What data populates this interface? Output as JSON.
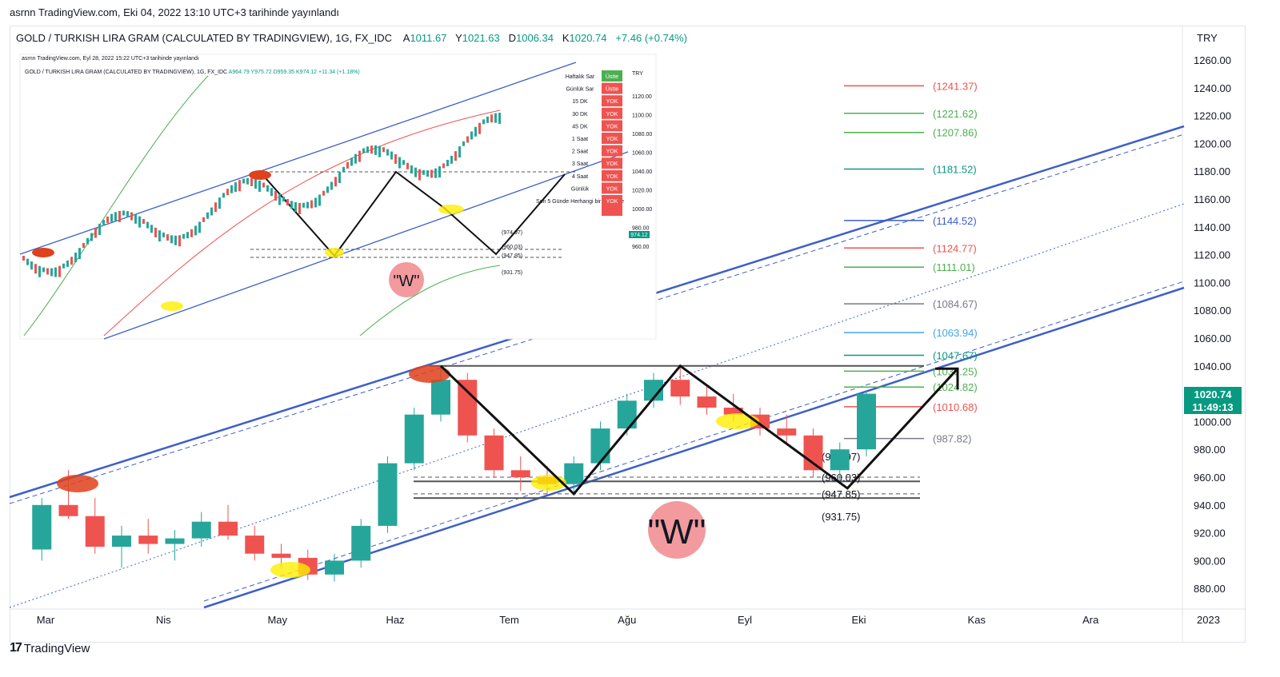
{
  "header": {
    "published_by": "asrnn TradingView.com, Eki 04, 2022 13:10 UTC+3 tarihinde yayınlandı",
    "symbol": "GOLD / TURKISH LIRA GRAM (CALCULATED BY TRADINGVIEW), 1G, FX_IDC",
    "open_label": "A",
    "open": "1011.67",
    "high_label": "Y",
    "high": "1021.63",
    "low_label": "D",
    "low": "1006.34",
    "close_label": "K",
    "close": "1020.74",
    "change": "+7.46 (+0.74%)",
    "currency": "TRY"
  },
  "footer": {
    "brand": "TradingView",
    "logo_glyph": "17"
  },
  "colors": {
    "bull": "#26a69a",
    "bear": "#ef5350",
    "channel": "#3d5fc7",
    "pattern": "#111111",
    "highlight_red": "#e0401b",
    "highlight_yellow": "#ffee00",
    "w_circle": "#f29a9e"
  },
  "chart_data": {
    "type": "candlestick",
    "title": "GOLD / TURKISH LIRA GRAM (CALCULATED BY TRADINGVIEW), 1G, FX_IDC",
    "y_axis": {
      "ticks": [
        "1260.00",
        "1240.00",
        "1220.00",
        "1200.00",
        "1180.00",
        "1160.00",
        "1140.00",
        "1120.00",
        "1100.00",
        "1080.00",
        "1060.00",
        "1040.00",
        "1020.00",
        "1000.00",
        "980.00",
        "960.00",
        "940.00",
        "920.00",
        "900.00",
        "880.00"
      ],
      "range": [
        868,
        1268
      ]
    },
    "x_axis": {
      "ticks": [
        "Mar",
        "Nis",
        "May",
        "Haz",
        "Tem",
        "Ağu",
        "Eyl",
        "Eki",
        "Kas",
        "Ara",
        "2023"
      ]
    },
    "last_price": {
      "value": "1020.74",
      "countdown": "11:49:13"
    },
    "price_levels": [
      {
        "label": "(1241.37)",
        "value": 1241.37,
        "color": "#ef5350"
      },
      {
        "label": "(1221.62)",
        "value": 1221.62,
        "color": "#4caf50"
      },
      {
        "label": "(1207.86)",
        "value": 1207.86,
        "color": "#4caf50"
      },
      {
        "label": "(1181.52)",
        "value": 1181.52,
        "color": "#089981"
      },
      {
        "label": "(1144.52)",
        "value": 1144.52,
        "color": "#3d5fc7"
      },
      {
        "label": "(1124.77)",
        "value": 1124.77,
        "color": "#ef5350"
      },
      {
        "label": "(1111.01)",
        "value": 1111.01,
        "color": "#4caf50"
      },
      {
        "label": "(1084.67)",
        "value": 1084.67,
        "color": "#787b86"
      },
      {
        "label": "(1063.94)",
        "value": 1063.94,
        "color": "#42a5f5"
      },
      {
        "label": "(1047.67)",
        "value": 1047.67,
        "color": "#089981"
      },
      {
        "label": "(1036.25)",
        "value": 1036.25,
        "color": "#4caf50"
      },
      {
        "label": "(1024.82)",
        "value": 1024.82,
        "color": "#4caf50"
      },
      {
        "label": "(1010.68)",
        "value": 1010.68,
        "color": "#ef5350"
      },
      {
        "label": "(987.82)",
        "value": 987.82,
        "color": "#787b86"
      },
      {
        "label": "(974.97)",
        "value": 974.97,
        "color": "#131722"
      },
      {
        "label": "(960.03)",
        "value": 960.03,
        "color": "#131722"
      },
      {
        "label": "(947.85)",
        "value": 947.85,
        "color": "#131722"
      },
      {
        "label": "(931.75)",
        "value": 931.75,
        "color": "#131722"
      }
    ],
    "w_pattern_points": [
      {
        "date": "2022-06-13",
        "value": 1040
      },
      {
        "date": "2022-07-18",
        "value": 948
      },
      {
        "date": "2022-08-15",
        "value": 1040
      },
      {
        "date": "2022-09-28",
        "value": 952
      },
      {
        "date": "2022-10-27",
        "value": 1038
      }
    ],
    "annotation": "\"W\"",
    "series": [
      {
        "values": []
      }
    ],
    "candles_approx": [
      [
        "2022-02-28",
        908,
        945,
        900,
        940
      ],
      [
        "2022-03-07",
        940,
        965,
        930,
        932
      ],
      [
        "2022-03-14",
        932,
        945,
        905,
        910
      ],
      [
        "2022-03-21",
        910,
        925,
        895,
        918
      ],
      [
        "2022-03-28",
        918,
        930,
        905,
        912
      ],
      [
        "2022-04-04",
        912,
        922,
        900,
        916
      ],
      [
        "2022-04-11",
        916,
        935,
        910,
        928
      ],
      [
        "2022-04-18",
        928,
        940,
        915,
        918
      ],
      [
        "2022-04-25",
        918,
        925,
        900,
        905
      ],
      [
        "2022-05-02",
        905,
        912,
        895,
        902
      ],
      [
        "2022-05-09",
        902,
        908,
        886,
        890
      ],
      [
        "2022-05-16",
        890,
        905,
        885,
        900
      ],
      [
        "2022-05-23",
        900,
        930,
        895,
        925
      ],
      [
        "2022-05-30",
        925,
        975,
        920,
        970
      ],
      [
        "2022-06-06",
        970,
        1010,
        965,
        1005
      ],
      [
        "2022-06-13",
        1005,
        1040,
        1000,
        1030
      ],
      [
        "2022-06-20",
        1030,
        1035,
        985,
        990
      ],
      [
        "2022-06-27",
        990,
        995,
        960,
        965
      ],
      [
        "2022-07-04",
        965,
        975,
        950,
        960
      ],
      [
        "2022-07-11",
        960,
        968,
        948,
        955
      ],
      [
        "2022-07-18",
        955,
        975,
        948,
        970
      ],
      [
        "2022-07-25",
        970,
        1000,
        965,
        995
      ],
      [
        "2022-08-01",
        995,
        1020,
        990,
        1015
      ],
      [
        "2022-08-08",
        1015,
        1035,
        1010,
        1030
      ],
      [
        "2022-08-15",
        1030,
        1040,
        1012,
        1018
      ],
      [
        "2022-08-22",
        1018,
        1025,
        1005,
        1010
      ],
      [
        "2022-08-29",
        1010,
        1020,
        1000,
        1005
      ],
      [
        "2022-09-05",
        1005,
        1010,
        990,
        995
      ],
      [
        "2022-09-12",
        995,
        1005,
        985,
        990
      ],
      [
        "2022-09-19",
        990,
        995,
        960,
        965
      ],
      [
        "2022-09-26",
        965,
        985,
        955,
        980
      ],
      [
        "2022-10-03",
        980,
        1022,
        975,
        1020
      ]
    ]
  },
  "inset": {
    "publish": "asrnn TradingView.com, Eyl 28, 2022 15:22 UTC+3 tarihinde yayınlandı",
    "symbol": "GOLD / TURKISH LIRA GRAM (CALCULATED BY TRADINGVIEW), 1G, FX_IDC",
    "ohlc": "A964.79 Y975.72 D959.35 K974.12",
    "change": "+11.34 (+1.18%)",
    "currency": "TRY",
    "y_ticks": [
      "1120.00",
      "1100.00",
      "1080.00",
      "1060.00",
      "1040.00",
      "1020.00",
      "1000.00",
      "980.00",
      "960.00"
    ],
    "last_price": "974.12",
    "levels": [
      "(974.97)",
      "(960.03)",
      "(947.85)",
      "(931.75)"
    ],
    "table": [
      {
        "tf": "Haftalık Sar",
        "status": "Üstte",
        "color": "#4caf50"
      },
      {
        "tf": "Günlük Sar",
        "status": "Üstte",
        "color": "#ef5350"
      },
      {
        "tf": "15 DK",
        "status": "YOK",
        "color": "#ef5350"
      },
      {
        "tf": "30 DK",
        "status": "YOK",
        "color": "#ef5350"
      },
      {
        "tf": "45 DK",
        "status": "YOK",
        "color": "#ef5350"
      },
      {
        "tf": "1 Saat",
        "status": "YOK",
        "color": "#ef5350"
      },
      {
        "tf": "2 Saat",
        "status": "YOK",
        "color": "#ef5350"
      },
      {
        "tf": "3 Saat",
        "status": "YOK",
        "color": "#ef5350"
      },
      {
        "tf": "4 Saat",
        "status": "YOK",
        "color": "#ef5350"
      },
      {
        "tf": "Günlük",
        "status": "YOK",
        "color": "#ef5350"
      },
      {
        "tf": "Son 5 Günde Herhangi bir Kesişme",
        "status": "YOK",
        "color": "#ef5350"
      }
    ],
    "annotation": "\"W\""
  }
}
